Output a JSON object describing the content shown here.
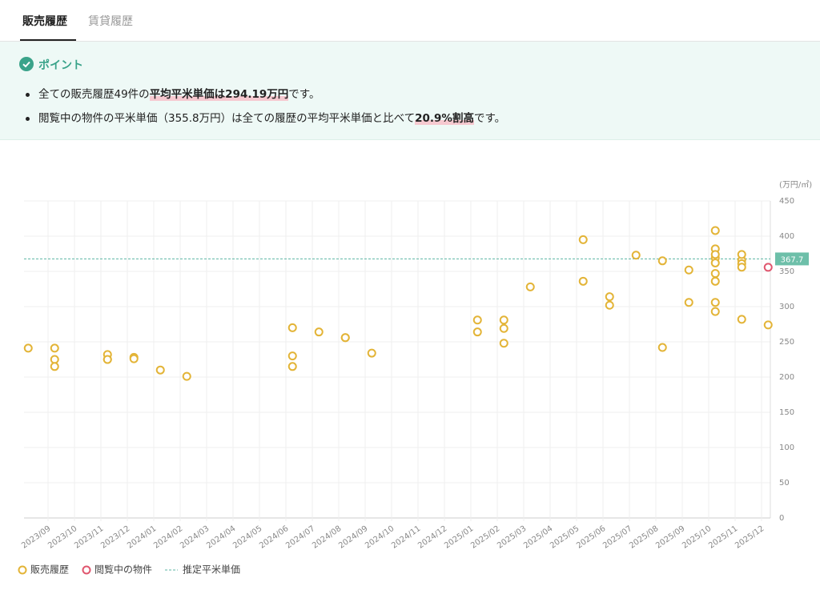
{
  "tabs": [
    {
      "label": "販売履歴",
      "active": true
    },
    {
      "label": "賃貸履歴",
      "active": false
    }
  ],
  "point": {
    "title": "ポイント",
    "bullets": [
      [
        {
          "text": "全ての販売履歴49件の",
          "strong": false
        },
        {
          "text": "平均平米単価は294.19万円",
          "strong": true
        },
        {
          "text": "です。",
          "strong": false
        }
      ],
      [
        {
          "text": "閲覧中の物件の平米単価（355.8万円）は全ての履歴の平均平米単価と比べて",
          "strong": false
        },
        {
          "text": "20.9%割高",
          "strong": true
        },
        {
          "text": "です。",
          "strong": false
        }
      ]
    ]
  },
  "chart_data": {
    "type": "scatter",
    "unit_label": "(万円/㎡)",
    "ylim": [
      0,
      450
    ],
    "yticks": [
      0,
      50,
      100,
      150,
      200,
      250,
      300,
      350,
      400,
      450
    ],
    "xticks": [
      "2023/09",
      "2023/10",
      "2023/11",
      "2023/12",
      "2024/01",
      "2024/02",
      "2024/03",
      "2024/04",
      "2024/05",
      "2024/06",
      "2024/07",
      "2024/08",
      "2024/09",
      "2024/10",
      "2024/11",
      "2024/12",
      "2025/01",
      "2025/02",
      "2025/03",
      "2025/04",
      "2025/05",
      "2025/06",
      "2025/07",
      "2025/08",
      "2025/09",
      "2025/10",
      "2025/11",
      "2025/12"
    ],
    "grid": true,
    "series": [
      {
        "name": "販売履歴",
        "color": "#e3b437",
        "x": [
          "2023/08",
          "2023/09",
          "2023/09",
          "2023/09",
          "2023/11",
          "2023/11",
          "2023/11",
          "2023/12",
          "2023/12",
          "2024/01",
          "2024/02",
          "2024/06",
          "2024/06",
          "2024/06",
          "2024/07",
          "2024/08",
          "2024/08",
          "2024/09",
          "2025/01",
          "2025/01",
          "2025/02",
          "2025/02",
          "2025/02",
          "2025/03",
          "2025/05",
          "2025/05",
          "2025/06",
          "2025/06",
          "2025/07",
          "2025/08",
          "2025/08",
          "2025/09",
          "2025/09",
          "2025/10",
          "2025/10",
          "2025/10",
          "2025/10",
          "2025/10",
          "2025/10",
          "2025/10",
          "2025/10",
          "2025/10",
          "2025/11",
          "2025/11",
          "2025/11",
          "2025/11",
          "2025/11",
          "2025/12"
        ],
        "values": [
          241,
          241,
          225,
          215,
          225,
          232,
          225,
          228,
          226,
          210,
          201,
          230,
          215,
          270,
          264,
          256,
          256,
          234,
          264,
          281,
          281,
          269,
          248,
          328,
          395,
          336,
          314,
          302,
          373,
          365,
          242,
          306,
          352,
          382,
          369,
          347,
          306,
          293,
          336,
          374,
          362,
          408,
          366,
          282,
          374,
          361,
          356,
          274
        ]
      },
      {
        "name": "閲覧中の物件",
        "color": "#e0566e",
        "x": [
          "2025/12"
        ],
        "values": [
          355.8
        ]
      }
    ],
    "reference": {
      "name": "推定平米単価",
      "value": 367.7,
      "color": "#5bb5a2"
    }
  }
}
